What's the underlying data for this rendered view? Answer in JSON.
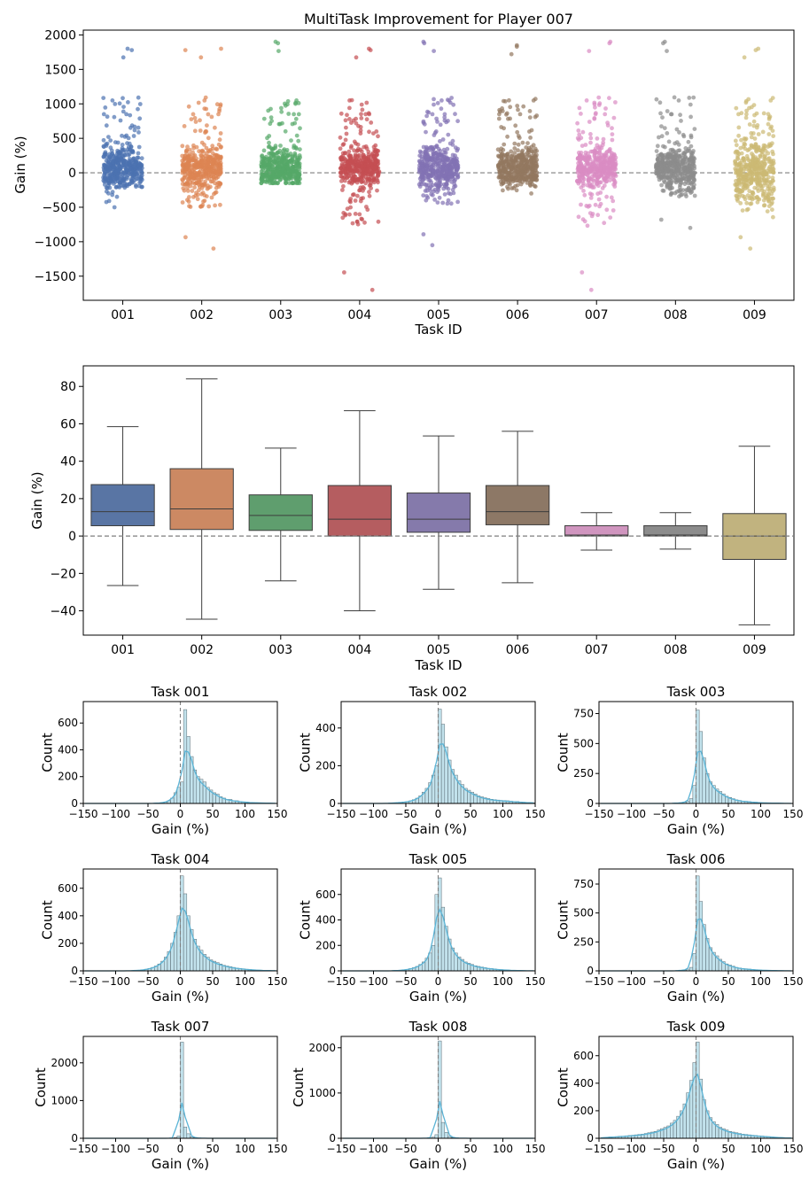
{
  "chart_data": [
    {
      "type": "scatter",
      "subtype": "strip",
      "title": "MultiTask Improvement for Player 007",
      "xlabel": "Task ID",
      "ylabel": "Gain (%)",
      "categories": [
        "001",
        "002",
        "003",
        "004",
        "005",
        "006",
        "007",
        "008",
        "009"
      ],
      "ylim": [
        -1850,
        2070
      ],
      "yticks": [
        2000,
        1500,
        1000,
        500,
        0,
        -500,
        -1000,
        -1500
      ],
      "ytick_labels": [
        "2000",
        "1500",
        "1000",
        "500",
        "0",
        "−500",
        "−1000",
        "−1500"
      ],
      "reference_line": 0,
      "colors": [
        "#4c72b0",
        "#dd8452",
        "#55a868",
        "#c44e52",
        "#8172b3",
        "#937860",
        "#da8bc3",
        "#8c8c8c",
        "#ccb974"
      ],
      "ranges": [
        {
          "min": -500,
          "max": 1800
        },
        {
          "min": -1100,
          "max": 1800
        },
        {
          "min": -150,
          "max": 1900
        },
        {
          "min": -1700,
          "max": 1800
        },
        {
          "min": -1050,
          "max": 1900
        },
        {
          "min": -300,
          "max": 1850
        },
        {
          "min": -1700,
          "max": 1900
        },
        {
          "min": -800,
          "max": 1900
        },
        {
          "min": -1100,
          "max": 1800
        }
      ]
    },
    {
      "type": "box",
      "xlabel": "Task ID",
      "ylabel": "Gain (%)",
      "categories": [
        "001",
        "002",
        "003",
        "004",
        "005",
        "006",
        "007",
        "008",
        "009"
      ],
      "ylim": [
        -53,
        91
      ],
      "yticks": [
        80,
        60,
        40,
        20,
        0,
        -20,
        -40
      ],
      "ytick_labels": [
        "80",
        "60",
        "40",
        "20",
        "0",
        "−20",
        "−40"
      ],
      "reference_line": 0,
      "colors": [
        "#5975a4",
        "#cc8963",
        "#5f9e6e",
        "#b55d60",
        "#857aab",
        "#8d7866",
        "#d095bf",
        "#8c8c8c",
        "#c1b37f"
      ],
      "boxes": [
        {
          "whisker_low": -26.5,
          "q1": 5.5,
          "median": 13,
          "q3": 27.5,
          "whisker_high": 58.5
        },
        {
          "whisker_low": -44.5,
          "q1": 3.5,
          "median": 14.5,
          "q3": 36,
          "whisker_high": 84
        },
        {
          "whisker_low": -24,
          "q1": 3,
          "median": 11,
          "q3": 22,
          "whisker_high": 47
        },
        {
          "whisker_low": -40,
          "q1": 0,
          "median": 9,
          "q3": 27,
          "whisker_high": 67
        },
        {
          "whisker_low": -28.5,
          "q1": 2,
          "median": 9,
          "q3": 23,
          "whisker_high": 53.5
        },
        {
          "whisker_low": -25,
          "q1": 6,
          "median": 13,
          "q3": 27,
          "whisker_high": 56
        },
        {
          "whisker_low": -7.5,
          "q1": 0,
          "median": 0.5,
          "q3": 5.5,
          "whisker_high": 12.5
        },
        {
          "whisker_low": -7,
          "q1": 0,
          "median": 0.5,
          "q3": 5.5,
          "whisker_high": 12.5
        },
        {
          "whisker_low": -47.5,
          "q1": -12.5,
          "median": 0,
          "q3": 12,
          "whisker_high": 48
        }
      ]
    },
    {
      "type": "histogram",
      "title": "Task 001",
      "xlabel": "Gain (%)",
      "ylabel": "Count",
      "xlim": [
        -150,
        150
      ],
      "ylim": [
        0,
        760
      ],
      "yticks": [
        0,
        200,
        400,
        600
      ],
      "bin_width": 5,
      "bin_start": -150,
      "counts": [
        0,
        0,
        0,
        0,
        0,
        0,
        0,
        0,
        0,
        0,
        0,
        0,
        0,
        0,
        0,
        0,
        0,
        0,
        0,
        0,
        0,
        0,
        2,
        4,
        6,
        10,
        20,
        40,
        80,
        120,
        160,
        700,
        500,
        350,
        250,
        200,
        180,
        160,
        120,
        100,
        80,
        70,
        50,
        40,
        30,
        30,
        20,
        20,
        15,
        12,
        10,
        8,
        6,
        5,
        4,
        4,
        3,
        2,
        1,
        0
      ]
    },
    {
      "type": "histogram",
      "title": "Task 002",
      "xlabel": "Gain (%)",
      "ylabel": "Count",
      "xlim": [
        -150,
        150
      ],
      "ylim": [
        0,
        540
      ],
      "yticks": [
        0,
        200,
        400
      ],
      "bin_width": 5,
      "bin_start": -150,
      "counts": [
        0,
        0,
        0,
        0,
        0,
        0,
        0,
        0,
        0,
        0,
        0,
        0,
        0,
        0,
        1,
        2,
        3,
        4,
        6,
        8,
        10,
        14,
        20,
        28,
        40,
        60,
        80,
        110,
        150,
        200,
        500,
        420,
        300,
        230,
        180,
        150,
        120,
        100,
        80,
        70,
        60,
        50,
        40,
        35,
        30,
        26,
        22,
        20,
        18,
        16,
        15,
        14,
        12,
        10,
        10,
        8,
        6,
        5,
        4,
        3
      ]
    },
    {
      "type": "histogram",
      "title": "Task 003",
      "xlabel": "Gain (%)",
      "ylabel": "Count",
      "xlim": [
        -150,
        150
      ],
      "ylim": [
        0,
        850
      ],
      "yticks": [
        0,
        250,
        500,
        750
      ],
      "bin_width": 5,
      "bin_start": -150,
      "counts": [
        0,
        0,
        0,
        0,
        0,
        0,
        0,
        0,
        0,
        0,
        0,
        0,
        0,
        0,
        0,
        0,
        0,
        0,
        0,
        0,
        0,
        0,
        0,
        2,
        4,
        6,
        10,
        20,
        40,
        150,
        780,
        600,
        380,
        250,
        180,
        150,
        120,
        100,
        80,
        60,
        50,
        40,
        30,
        25,
        20,
        18,
        15,
        12,
        10,
        8,
        6,
        5,
        4,
        3,
        3,
        2,
        2,
        1,
        1,
        0
      ]
    },
    {
      "type": "histogram",
      "title": "Task 004",
      "xlabel": "Gain (%)",
      "ylabel": "Count",
      "xlim": [
        -150,
        150
      ],
      "ylim": [
        0,
        740
      ],
      "yticks": [
        0,
        200,
        400,
        600
      ],
      "bin_width": 5,
      "bin_start": -150,
      "counts": [
        0,
        0,
        0,
        0,
        0,
        0,
        0,
        0,
        0,
        0,
        0,
        0,
        0,
        0,
        1,
        2,
        3,
        5,
        8,
        12,
        18,
        25,
        35,
        50,
        70,
        100,
        140,
        200,
        280,
        400,
        690,
        560,
        400,
        300,
        230,
        180,
        150,
        120,
        100,
        80,
        70,
        60,
        50,
        40,
        35,
        30,
        25,
        20,
        18,
        15,
        12,
        10,
        8,
        6,
        5,
        4,
        3,
        2,
        1,
        1
      ]
    },
    {
      "type": "histogram",
      "title": "Task 005",
      "xlabel": "Gain (%)",
      "ylabel": "Count",
      "xlim": [
        -150,
        150
      ],
      "ylim": [
        0,
        800
      ],
      "yticks": [
        0,
        200,
        400,
        600
      ],
      "bin_width": 5,
      "bin_start": -150,
      "counts": [
        0,
        0,
        0,
        0,
        0,
        0,
        0,
        0,
        0,
        0,
        0,
        0,
        0,
        0,
        0,
        1,
        2,
        3,
        5,
        8,
        12,
        18,
        25,
        35,
        50,
        70,
        100,
        140,
        200,
        600,
        730,
        500,
        350,
        250,
        180,
        140,
        110,
        90,
        70,
        60,
        50,
        40,
        35,
        30,
        25,
        20,
        18,
        15,
        12,
        10,
        8,
        6,
        5,
        4,
        3,
        2,
        2,
        1,
        1,
        0
      ]
    },
    {
      "type": "histogram",
      "title": "Task 006",
      "xlabel": "Gain (%)",
      "ylabel": "Count",
      "xlim": [
        -150,
        150
      ],
      "ylim": [
        0,
        880
      ],
      "yticks": [
        0,
        250,
        500,
        750
      ],
      "bin_width": 5,
      "bin_start": -150,
      "counts": [
        0,
        0,
        0,
        0,
        0,
        0,
        0,
        0,
        0,
        0,
        0,
        0,
        0,
        0,
        0,
        0,
        0,
        0,
        0,
        0,
        0,
        0,
        0,
        1,
        2,
        4,
        8,
        15,
        30,
        150,
        820,
        600,
        400,
        280,
        200,
        160,
        130,
        100,
        80,
        60,
        50,
        40,
        30,
        25,
        20,
        18,
        15,
        12,
        10,
        8,
        6,
        5,
        4,
        3,
        3,
        2,
        2,
        1,
        1,
        0
      ]
    },
    {
      "type": "histogram",
      "title": "Task 007",
      "xlabel": "Gain (%)",
      "ylabel": "Count",
      "xlim": [
        -150,
        150
      ],
      "ylim": [
        0,
        2700
      ],
      "yticks": [
        0,
        1000,
        2000
      ],
      "bin_width": 5,
      "bin_start": -150,
      "counts": [
        0,
        0,
        0,
        0,
        0,
        0,
        0,
        0,
        0,
        0,
        0,
        0,
        0,
        0,
        0,
        0,
        0,
        0,
        0,
        0,
        0,
        0,
        0,
        0,
        0,
        0,
        2,
        5,
        20,
        60,
        2550,
        300,
        120,
        40,
        15,
        8,
        4,
        2,
        1,
        0,
        0,
        0,
        0,
        0,
        0,
        0,
        0,
        0,
        0,
        0,
        0,
        0,
        0,
        0,
        0,
        0,
        0,
        0,
        0,
        0
      ]
    },
    {
      "type": "histogram",
      "title": "Task 008",
      "xlabel": "Gain (%)",
      "ylabel": "Count",
      "xlim": [
        -150,
        150
      ],
      "ylim": [
        0,
        2250
      ],
      "yticks": [
        0,
        1000,
        2000
      ],
      "bin_width": 5,
      "bin_start": -150,
      "counts": [
        0,
        0,
        0,
        0,
        0,
        0,
        0,
        0,
        0,
        0,
        0,
        0,
        0,
        0,
        0,
        0,
        0,
        0,
        0,
        0,
        0,
        0,
        0,
        0,
        0,
        0,
        3,
        8,
        25,
        80,
        2150,
        350,
        130,
        40,
        15,
        8,
        4,
        2,
        1,
        0,
        0,
        0,
        0,
        0,
        0,
        0,
        0,
        0,
        0,
        0,
        0,
        0,
        0,
        0,
        0,
        0,
        0,
        0,
        0,
        0
      ]
    },
    {
      "type": "histogram",
      "title": "Task 009",
      "xlabel": "Gain (%)",
      "ylabel": "Count",
      "xlim": [
        -150,
        150
      ],
      "ylim": [
        0,
        740
      ],
      "yticks": [
        0,
        200,
        400,
        600
      ],
      "bin_width": 5,
      "bin_start": -150,
      "counts": [
        0,
        5,
        8,
        10,
        10,
        12,
        15,
        15,
        18,
        20,
        22,
        25,
        28,
        30,
        35,
        40,
        45,
        50,
        60,
        70,
        80,
        90,
        110,
        130,
        160,
        200,
        250,
        330,
        420,
        550,
        700,
        430,
        280,
        200,
        150,
        120,
        100,
        80,
        70,
        60,
        50,
        45,
        40,
        35,
        30,
        28,
        25,
        22,
        20,
        18,
        16,
        14,
        12,
        10,
        8,
        6,
        5,
        4,
        3,
        2
      ]
    }
  ]
}
